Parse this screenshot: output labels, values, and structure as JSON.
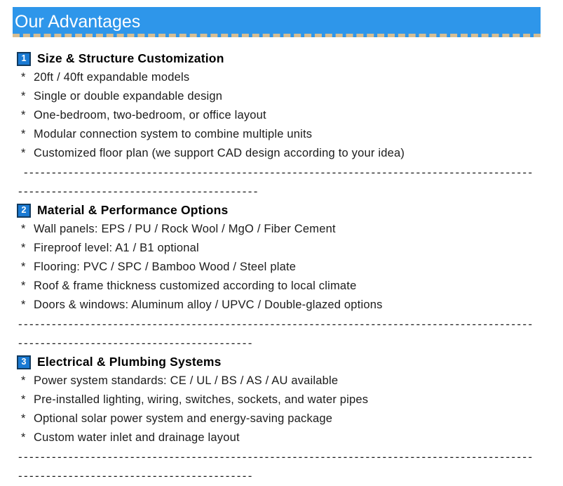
{
  "header": {
    "title": "Our Advantages"
  },
  "bullet_char": "*",
  "colors": {
    "banner-bg": "#2e96ea",
    "banner-dash": "#d6bd92",
    "badge-bg": "#1a7ad3",
    "badge-border": "#123a5e",
    "text": "#1b1b1b",
    "heading": "#000000"
  },
  "sections": [
    {
      "number": "1",
      "title": "Size & Structure Customization",
      "items": [
        "20ft / 40ft expandable models",
        "Single or double expandable design",
        "One-bedroom, two-bedroom, or office layout",
        "Modular connection system to combine multiple units",
        "Customized floor plan (we support CAD design according to your idea)"
      ],
      "separator": {
        "line1": " -------------------------------------------------------------------------------------------",
        "line2": "-------------------------------------------"
      }
    },
    {
      "number": "2",
      "title": "Material & Performance Options",
      "items": [
        "Wall panels: EPS / PU / Rock Wool / MgO / Fiber Cement",
        "Fireproof level: A1 / B1 optional",
        "Flooring: PVC / SPC / Bamboo Wood / Steel plate",
        "Roof & frame thickness customized according to local climate",
        "Doors & windows: Aluminum alloy / UPVC / Double-glazed options"
      ],
      "separator": {
        "line1": "--------------------------------------------------------------------------------------------",
        "line2": "------------------------------------------"
      }
    },
    {
      "number": "3",
      "title": "Electrical & Plumbing Systems",
      "items": [
        "Power system standards: CE / UL / BS / AS / AU available",
        "Pre-installed lighting, wiring, switches, sockets, and water pipes",
        "Optional solar power system and energy-saving package",
        "Custom water inlet and drainage layout"
      ],
      "separator": {
        "line1": "--------------------------------------------------------------------------------------------",
        "line2": "------------------------------------------"
      }
    }
  ]
}
